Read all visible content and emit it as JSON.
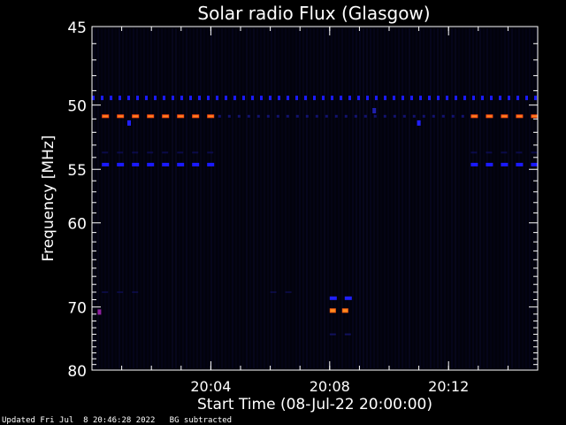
{
  "chart_data": {
    "type": "heatmap",
    "title": "Solar radio Flux (Glasgow)",
    "ylabel": "Frequency [MHz]",
    "xlabel": "Start Time (08-Jul-22 20:00:00)",
    "y_scale": "reciprocal",
    "ylim": [
      45,
      80
    ],
    "y_ticks": [
      45,
      50,
      55,
      60,
      70,
      80
    ],
    "xlim": [
      "20:00:00",
      "20:15:00"
    ],
    "x_ticks": [
      "20:04",
      "20:08",
      "20:12"
    ],
    "grid": false,
    "background_color": "#02020c",
    "bands": [
      {
        "freq": 49.5,
        "color": "#1a1aff",
        "segments": [
          [
            "20:00:00",
            "20:15:00"
          ]
        ],
        "style": "dashed-dense"
      },
      {
        "freq": 50.8,
        "color": "#ff4a10",
        "segments": [
          [
            "20:00:20",
            "20:04:15"
          ],
          [
            "20:12:45",
            "20:15:00"
          ]
        ],
        "style": "dashed"
      },
      {
        "freq": 50.8,
        "color": "#2020c0",
        "segments": [
          [
            "20:04:15",
            "20:12:45"
          ]
        ],
        "style": "dotted-faint"
      },
      {
        "freq": 53.6,
        "color": "#101070",
        "segments": [
          [
            "20:00:20",
            "20:04:15"
          ],
          [
            "20:12:45",
            "20:15:00"
          ]
        ],
        "style": "dashed-faint"
      },
      {
        "freq": 54.6,
        "color": "#1a1aff",
        "segments": [
          [
            "20:00:20",
            "20:04:15"
          ],
          [
            "20:12:45",
            "20:15:00"
          ]
        ],
        "style": "dashed"
      },
      {
        "freq": 68.8,
        "color": "#2020ff",
        "segments": [
          [
            "20:08:00",
            "20:08:45"
          ]
        ],
        "style": "dashed"
      },
      {
        "freq": 70.5,
        "color": "#ff6010",
        "segments": [
          [
            "20:08:00",
            "20:08:45"
          ]
        ],
        "style": "dashed-bright"
      },
      {
        "freq": 74.0,
        "color": "#1a1a90",
        "segments": [
          [
            "20:08:00",
            "20:08:45"
          ]
        ],
        "style": "dashed-faint"
      },
      {
        "freq": 68.0,
        "color": "#101060",
        "segments": [
          [
            "20:00:20",
            "20:02:00"
          ],
          [
            "20:06:00",
            "20:07:00"
          ]
        ],
        "style": "dashed-faint"
      }
    ],
    "spots": [
      {
        "time": "20:00:15",
        "freq": 70.7,
        "color": "#9020a0"
      },
      {
        "time": "20:01:15",
        "freq": 51.3,
        "color": "#2020ff"
      },
      {
        "time": "20:11:00",
        "freq": 51.3,
        "color": "#2020ff"
      },
      {
        "time": "20:09:30",
        "freq": 50.4,
        "color": "#2020b0"
      }
    ]
  },
  "footer": {
    "text": "Updated Fri Jul  8 20:46:28 2022   BG subtracted"
  }
}
